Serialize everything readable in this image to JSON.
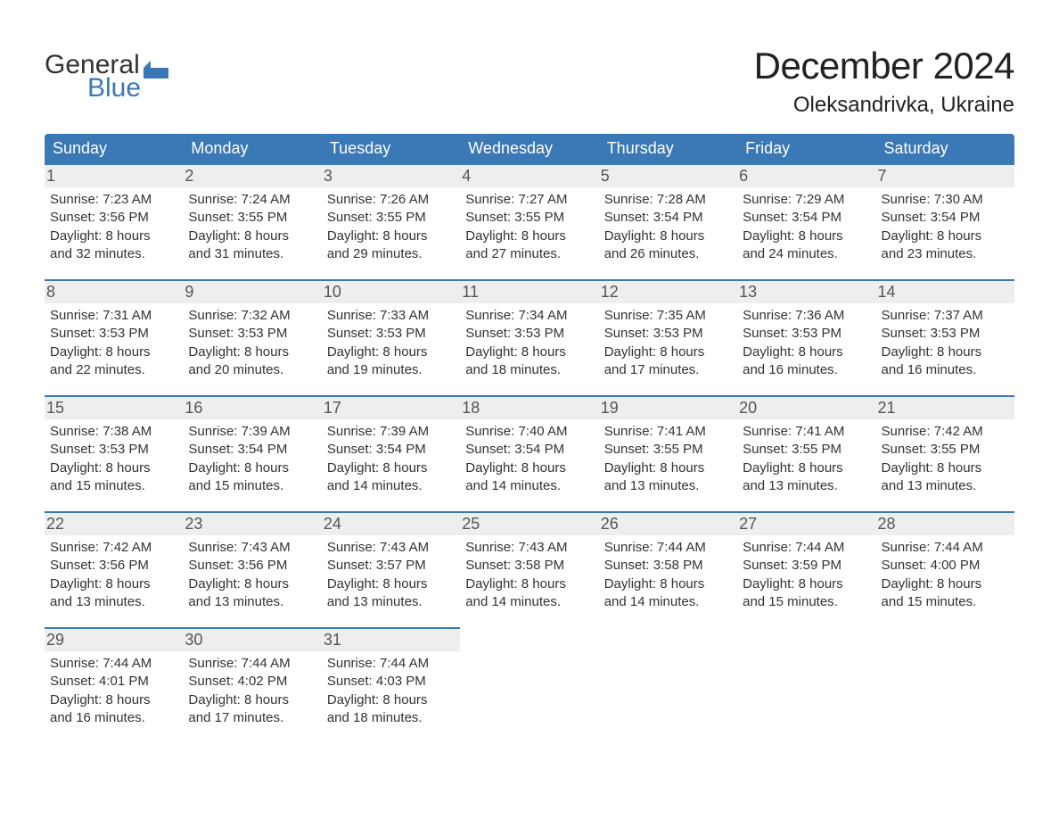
{
  "brand": {
    "word1": "General",
    "word2": "Blue",
    "logo_color": "#3a78b6"
  },
  "title": "December 2024",
  "location": "Oleksandrivka, Ukraine",
  "colors": {
    "header_bg": "#3a78b6",
    "header_fg": "#ffffff",
    "daynum_bg": "#eeeeee",
    "week_divider": "#3a78b6",
    "body_text": "#333333",
    "page_bg": "#ffffff"
  },
  "weekdays": [
    "Sunday",
    "Monday",
    "Tuesday",
    "Wednesday",
    "Thursday",
    "Friday",
    "Saturday"
  ],
  "weeks": [
    [
      {
        "n": "1",
        "sunrise": "Sunrise: 7:23 AM",
        "sunset": "Sunset: 3:56 PM",
        "d1": "Daylight: 8 hours",
        "d2": "and 32 minutes."
      },
      {
        "n": "2",
        "sunrise": "Sunrise: 7:24 AM",
        "sunset": "Sunset: 3:55 PM",
        "d1": "Daylight: 8 hours",
        "d2": "and 31 minutes."
      },
      {
        "n": "3",
        "sunrise": "Sunrise: 7:26 AM",
        "sunset": "Sunset: 3:55 PM",
        "d1": "Daylight: 8 hours",
        "d2": "and 29 minutes."
      },
      {
        "n": "4",
        "sunrise": "Sunrise: 7:27 AM",
        "sunset": "Sunset: 3:55 PM",
        "d1": "Daylight: 8 hours",
        "d2": "and 27 minutes."
      },
      {
        "n": "5",
        "sunrise": "Sunrise: 7:28 AM",
        "sunset": "Sunset: 3:54 PM",
        "d1": "Daylight: 8 hours",
        "d2": "and 26 minutes."
      },
      {
        "n": "6",
        "sunrise": "Sunrise: 7:29 AM",
        "sunset": "Sunset: 3:54 PM",
        "d1": "Daylight: 8 hours",
        "d2": "and 24 minutes."
      },
      {
        "n": "7",
        "sunrise": "Sunrise: 7:30 AM",
        "sunset": "Sunset: 3:54 PM",
        "d1": "Daylight: 8 hours",
        "d2": "and 23 minutes."
      }
    ],
    [
      {
        "n": "8",
        "sunrise": "Sunrise: 7:31 AM",
        "sunset": "Sunset: 3:53 PM",
        "d1": "Daylight: 8 hours",
        "d2": "and 22 minutes."
      },
      {
        "n": "9",
        "sunrise": "Sunrise: 7:32 AM",
        "sunset": "Sunset: 3:53 PM",
        "d1": "Daylight: 8 hours",
        "d2": "and 20 minutes."
      },
      {
        "n": "10",
        "sunrise": "Sunrise: 7:33 AM",
        "sunset": "Sunset: 3:53 PM",
        "d1": "Daylight: 8 hours",
        "d2": "and 19 minutes."
      },
      {
        "n": "11",
        "sunrise": "Sunrise: 7:34 AM",
        "sunset": "Sunset: 3:53 PM",
        "d1": "Daylight: 8 hours",
        "d2": "and 18 minutes."
      },
      {
        "n": "12",
        "sunrise": "Sunrise: 7:35 AM",
        "sunset": "Sunset: 3:53 PM",
        "d1": "Daylight: 8 hours",
        "d2": "and 17 minutes."
      },
      {
        "n": "13",
        "sunrise": "Sunrise: 7:36 AM",
        "sunset": "Sunset: 3:53 PM",
        "d1": "Daylight: 8 hours",
        "d2": "and 16 minutes."
      },
      {
        "n": "14",
        "sunrise": "Sunrise: 7:37 AM",
        "sunset": "Sunset: 3:53 PM",
        "d1": "Daylight: 8 hours",
        "d2": "and 16 minutes."
      }
    ],
    [
      {
        "n": "15",
        "sunrise": "Sunrise: 7:38 AM",
        "sunset": "Sunset: 3:53 PM",
        "d1": "Daylight: 8 hours",
        "d2": "and 15 minutes."
      },
      {
        "n": "16",
        "sunrise": "Sunrise: 7:39 AM",
        "sunset": "Sunset: 3:54 PM",
        "d1": "Daylight: 8 hours",
        "d2": "and 15 minutes."
      },
      {
        "n": "17",
        "sunrise": "Sunrise: 7:39 AM",
        "sunset": "Sunset: 3:54 PM",
        "d1": "Daylight: 8 hours",
        "d2": "and 14 minutes."
      },
      {
        "n": "18",
        "sunrise": "Sunrise: 7:40 AM",
        "sunset": "Sunset: 3:54 PM",
        "d1": "Daylight: 8 hours",
        "d2": "and 14 minutes."
      },
      {
        "n": "19",
        "sunrise": "Sunrise: 7:41 AM",
        "sunset": "Sunset: 3:55 PM",
        "d1": "Daylight: 8 hours",
        "d2": "and 13 minutes."
      },
      {
        "n": "20",
        "sunrise": "Sunrise: 7:41 AM",
        "sunset": "Sunset: 3:55 PM",
        "d1": "Daylight: 8 hours",
        "d2": "and 13 minutes."
      },
      {
        "n": "21",
        "sunrise": "Sunrise: 7:42 AM",
        "sunset": "Sunset: 3:55 PM",
        "d1": "Daylight: 8 hours",
        "d2": "and 13 minutes."
      }
    ],
    [
      {
        "n": "22",
        "sunrise": "Sunrise: 7:42 AM",
        "sunset": "Sunset: 3:56 PM",
        "d1": "Daylight: 8 hours",
        "d2": "and 13 minutes."
      },
      {
        "n": "23",
        "sunrise": "Sunrise: 7:43 AM",
        "sunset": "Sunset: 3:56 PM",
        "d1": "Daylight: 8 hours",
        "d2": "and 13 minutes."
      },
      {
        "n": "24",
        "sunrise": "Sunrise: 7:43 AM",
        "sunset": "Sunset: 3:57 PM",
        "d1": "Daylight: 8 hours",
        "d2": "and 13 minutes."
      },
      {
        "n": "25",
        "sunrise": "Sunrise: 7:43 AM",
        "sunset": "Sunset: 3:58 PM",
        "d1": "Daylight: 8 hours",
        "d2": "and 14 minutes."
      },
      {
        "n": "26",
        "sunrise": "Sunrise: 7:44 AM",
        "sunset": "Sunset: 3:58 PM",
        "d1": "Daylight: 8 hours",
        "d2": "and 14 minutes."
      },
      {
        "n": "27",
        "sunrise": "Sunrise: 7:44 AM",
        "sunset": "Sunset: 3:59 PM",
        "d1": "Daylight: 8 hours",
        "d2": "and 15 minutes."
      },
      {
        "n": "28",
        "sunrise": "Sunrise: 7:44 AM",
        "sunset": "Sunset: 4:00 PM",
        "d1": "Daylight: 8 hours",
        "d2": "and 15 minutes."
      }
    ],
    [
      {
        "n": "29",
        "sunrise": "Sunrise: 7:44 AM",
        "sunset": "Sunset: 4:01 PM",
        "d1": "Daylight: 8 hours",
        "d2": "and 16 minutes."
      },
      {
        "n": "30",
        "sunrise": "Sunrise: 7:44 AM",
        "sunset": "Sunset: 4:02 PM",
        "d1": "Daylight: 8 hours",
        "d2": "and 17 minutes."
      },
      {
        "n": "31",
        "sunrise": "Sunrise: 7:44 AM",
        "sunset": "Sunset: 4:03 PM",
        "d1": "Daylight: 8 hours",
        "d2": "and 18 minutes."
      },
      {
        "empty": true
      },
      {
        "empty": true
      },
      {
        "empty": true
      },
      {
        "empty": true
      }
    ]
  ]
}
